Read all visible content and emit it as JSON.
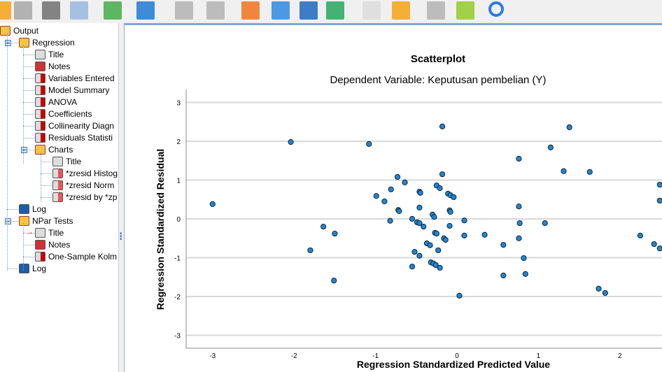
{
  "toolbar": {
    "icons": [
      "open-folder-icon",
      "save-icon",
      "print-icon",
      "print-preview-icon",
      "export-icon",
      "recall-dialog-icon",
      "undo-icon",
      "redo-icon",
      "goto-case-icon",
      "goto-variable-icon",
      "insert-cases-icon",
      "variables-icon",
      "edit-icon",
      "run-icon",
      "designate-window-icon",
      "add-icon",
      "search-icon"
    ]
  },
  "tree": {
    "items": [
      {
        "label": "Output",
        "icon": "book",
        "level": 0
      },
      {
        "label": "Regression",
        "icon": "book",
        "level": 1
      },
      {
        "label": "Title",
        "icon": "title",
        "level": 2
      },
      {
        "label": "Notes",
        "icon": "notes",
        "level": 2
      },
      {
        "label": "Variables Entered",
        "icon": "tbl",
        "level": 2
      },
      {
        "label": "Model Summary",
        "icon": "tbl",
        "level": 2
      },
      {
        "label": "ANOVA",
        "icon": "tbl",
        "level": 2
      },
      {
        "label": "Coefficients",
        "icon": "tbl",
        "level": 2
      },
      {
        "label": "Collinearity Diagn",
        "icon": "tbl",
        "level": 2
      },
      {
        "label": "Residuals Statisti",
        "icon": "tbl",
        "level": 2
      },
      {
        "label": "Charts",
        "icon": "book",
        "level": 2
      },
      {
        "label": "Title",
        "icon": "title",
        "level": 3
      },
      {
        "label": "*zresid Histog",
        "icon": "chart",
        "level": 3
      },
      {
        "label": "*zresid Norm",
        "icon": "chart",
        "level": 3
      },
      {
        "label": "*zresid by *zp",
        "icon": "chart",
        "level": 3
      },
      {
        "label": "Log",
        "icon": "log",
        "level": 1
      },
      {
        "label": "NPar Tests",
        "icon": "book",
        "level": 1
      },
      {
        "label": "Title",
        "icon": "title",
        "level": 2,
        "current": true
      },
      {
        "label": "Notes",
        "icon": "notes",
        "level": 2
      },
      {
        "label": "One-Sample Kolm",
        "icon": "tbl",
        "level": 2
      },
      {
        "label": "Log",
        "icon": "log",
        "level": 1
      }
    ]
  },
  "chart_data": {
    "type": "scatter",
    "title": "Scatterplot",
    "subtitle": "Dependent Variable: Keputusan pembelian (Y)",
    "xlabel": "Regression Standardized Predicted Value",
    "ylabel": "Regression Standardized Residual",
    "xlim": [
      -3.3,
      2.5
    ],
    "ylim": [
      -3.3,
      3.3
    ],
    "xticks": [
      -3,
      -2,
      -1,
      0,
      1,
      2
    ],
    "yticks": [
      3,
      2,
      1,
      0,
      -1,
      -2,
      -3
    ],
    "grid": "horizontal",
    "point_color": "#1f87d6",
    "points": [
      [
        -3.0,
        0.38
      ],
      [
        -2.04,
        1.98
      ],
      [
        -1.08,
        1.93
      ],
      [
        -0.18,
        2.38
      ],
      [
        1.38,
        2.36
      ],
      [
        1.15,
        1.84
      ],
      [
        0.76,
        1.55
      ],
      [
        1.31,
        1.23
      ],
      [
        1.63,
        1.21
      ],
      [
        -0.18,
        1.15
      ],
      [
        -0.73,
        1.08
      ],
      [
        -0.64,
        0.94
      ],
      [
        -0.81,
        0.76
      ],
      [
        -0.99,
        0.59
      ],
      [
        -0.89,
        0.45
      ],
      [
        -0.46,
        0.7
      ],
      [
        -0.45,
        0.67
      ],
      [
        -0.25,
        0.86
      ],
      [
        -0.21,
        0.79
      ],
      [
        -0.11,
        0.65
      ],
      [
        -0.08,
        0.61
      ],
      [
        -0.04,
        0.56
      ],
      [
        2.49,
        0.88
      ],
      [
        2.49,
        0.47
      ],
      [
        0.76,
        0.32
      ],
      [
        -0.46,
        0.29
      ],
      [
        -0.72,
        0.23
      ],
      [
        -0.71,
        0.2
      ],
      [
        -0.09,
        0.22
      ],
      [
        -0.08,
        0.18
      ],
      [
        -0.3,
        0.11
      ],
      [
        -0.28,
        0.05
      ],
      [
        -0.82,
        -0.05
      ],
      [
        -0.55,
        0.0
      ],
      [
        -0.49,
        -0.09
      ],
      [
        -0.46,
        -0.11
      ],
      [
        -0.41,
        -0.2
      ],
      [
        0.09,
        -0.04
      ],
      [
        0.77,
        -0.11
      ],
      [
        1.08,
        -0.11
      ],
      [
        -0.09,
        -0.18
      ],
      [
        -1.64,
        -0.2
      ],
      [
        -1.5,
        -0.38
      ],
      [
        -0.27,
        -0.36
      ],
      [
        -0.25,
        -0.38
      ],
      [
        0.09,
        -0.43
      ],
      [
        0.34,
        -0.41
      ],
      [
        0.76,
        -0.5
      ],
      [
        2.25,
        -0.43
      ],
      [
        -0.16,
        -0.5
      ],
      [
        -0.14,
        -0.54
      ],
      [
        -0.37,
        -0.63
      ],
      [
        -0.33,
        -0.68
      ],
      [
        0.57,
        -0.67
      ],
      [
        2.42,
        -0.65
      ],
      [
        2.49,
        -0.76
      ],
      [
        -1.8,
        -0.81
      ],
      [
        -0.23,
        -0.81
      ],
      [
        -0.52,
        -0.85
      ],
      [
        -0.46,
        -0.95
      ],
      [
        0.82,
        -1.01
      ],
      [
        -0.55,
        -1.23
      ],
      [
        -0.32,
        -1.12
      ],
      [
        -0.29,
        -1.15
      ],
      [
        -0.26,
        -1.19
      ],
      [
        -0.21,
        -1.26
      ],
      [
        0.84,
        -1.42
      ],
      [
        0.57,
        -1.46
      ],
      [
        -1.51,
        -1.59
      ],
      [
        1.74,
        -1.8
      ],
      [
        1.82,
        -1.91
      ],
      [
        0.03,
        -1.98
      ]
    ]
  }
}
